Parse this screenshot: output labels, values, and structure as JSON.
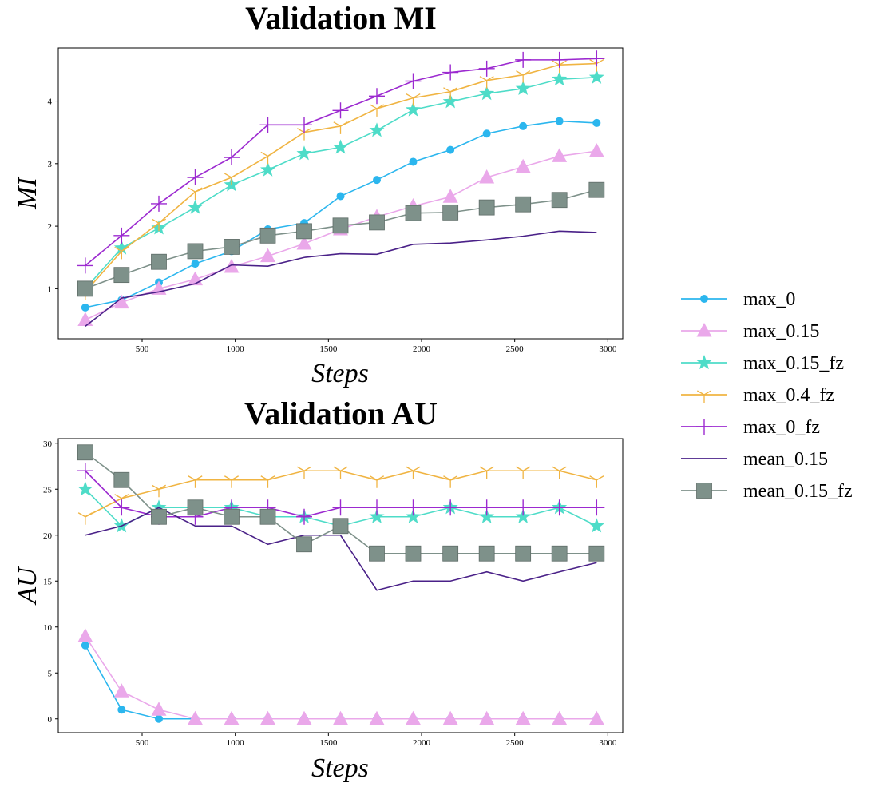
{
  "chart_data": [
    {
      "type": "line",
      "title": "Validation MI",
      "xlabel": "Steps",
      "ylabel": "MI",
      "xlim": [
        50,
        3080
      ],
      "ylim": [
        0.2,
        4.85
      ],
      "xticks": [
        500,
        1000,
        1500,
        2000,
        2500,
        3000
      ],
      "yticks": [
        1,
        2,
        3,
        4
      ],
      "x": [
        195,
        390,
        590,
        785,
        980,
        1175,
        1370,
        1565,
        1760,
        1955,
        2155,
        2350,
        2545,
        2740,
        2940
      ],
      "series": [
        {
          "name": "max_0",
          "values": [
            0.7,
            0.82,
            1.1,
            1.4,
            1.6,
            1.95,
            2.05,
            2.48,
            2.74,
            3.03,
            3.22,
            3.48,
            3.6,
            3.68,
            3.65
          ]
        },
        {
          "name": "max_0.15",
          "values": [
            0.5,
            0.78,
            1.0,
            1.15,
            1.35,
            1.52,
            1.72,
            1.95,
            2.15,
            2.32,
            2.47,
            2.78,
            2.95,
            3.12,
            3.2
          ]
        },
        {
          "name": "max_0.15_fz",
          "values": [
            1.0,
            1.65,
            1.97,
            2.3,
            2.66,
            2.9,
            3.16,
            3.26,
            3.53,
            3.86,
            3.99,
            4.12,
            4.2,
            4.35,
            4.38
          ]
        },
        {
          "name": "max_0.4_fz",
          "values": [
            0.95,
            1.6,
            2.05,
            2.55,
            2.78,
            3.12,
            3.5,
            3.6,
            3.88,
            4.05,
            4.15,
            4.33,
            4.42,
            4.58,
            4.6
          ]
        },
        {
          "name": "max_0_fz",
          "values": [
            1.37,
            1.85,
            2.36,
            2.78,
            3.1,
            3.62,
            3.62,
            3.85,
            4.08,
            4.32,
            4.46,
            4.52,
            4.66,
            4.66,
            4.68
          ]
        },
        {
          "name": "mean_0.15",
          "values": [
            0.4,
            0.85,
            0.95,
            1.08,
            1.38,
            1.36,
            1.5,
            1.56,
            1.55,
            1.71,
            1.73,
            1.78,
            1.84,
            1.92,
            1.9
          ]
        },
        {
          "name": "mean_0.15_fz",
          "values": [
            1.0,
            1.22,
            1.43,
            1.6,
            1.67,
            1.85,
            1.92,
            2.01,
            2.06,
            2.21,
            2.22,
            2.3,
            2.35,
            2.42,
            2.58
          ]
        }
      ]
    },
    {
      "type": "line",
      "title": "Validation AU",
      "xlabel": "Steps",
      "ylabel": "AU",
      "xlim": [
        50,
        3080
      ],
      "ylim": [
        -1.5,
        30.5
      ],
      "xticks": [
        500,
        1000,
        1500,
        2000,
        2500,
        3000
      ],
      "yticks": [
        0,
        5,
        10,
        15,
        20,
        25,
        30
      ],
      "x": [
        195,
        390,
        590,
        785,
        980,
        1175,
        1370,
        1565,
        1760,
        1955,
        2155,
        2350,
        2545,
        2740,
        2940
      ],
      "series": [
        {
          "name": "max_0",
          "values": [
            8,
            1,
            0,
            0,
            0,
            0,
            0,
            0,
            0,
            0,
            0,
            0,
            0,
            0,
            0
          ]
        },
        {
          "name": "max_0.15",
          "values": [
            9,
            3,
            1,
            0,
            0,
            0,
            0,
            0,
            0,
            0,
            0,
            0,
            0,
            0,
            0
          ]
        },
        {
          "name": "max_0.15_fz",
          "values": [
            25,
            21,
            23,
            23,
            23,
            22,
            22,
            21,
            22,
            22,
            23,
            22,
            22,
            23,
            21
          ]
        },
        {
          "name": "max_0.4_fz",
          "values": [
            22,
            24,
            25,
            26,
            26,
            26,
            27,
            27,
            26,
            27,
            26,
            27,
            27,
            27,
            26
          ]
        },
        {
          "name": "max_0_fz",
          "values": [
            27,
            23,
            22,
            22,
            23,
            23,
            22,
            23,
            23,
            23,
            23,
            23,
            23,
            23,
            23
          ]
        },
        {
          "name": "mean_0.15",
          "values": [
            20,
            21,
            23,
            21,
            21,
            19,
            20,
            20,
            14,
            15,
            15,
            16,
            15,
            16,
            17
          ]
        },
        {
          "name": "mean_0.15_fz",
          "values": [
            29,
            26,
            22,
            23,
            22,
            22,
            19,
            21,
            18,
            18,
            18,
            18,
            18,
            18,
            18
          ]
        }
      ]
    }
  ],
  "legend": {
    "placement": "right",
    "items": [
      "max_0",
      "max_0.15",
      "max_0.15_fz",
      "max_0.4_fz",
      "max_0_fz",
      "mean_0.15",
      "mean_0.15_fz"
    ]
  },
  "styles": {
    "max_0": {
      "color": "#2bb6ee",
      "marker": "circle"
    },
    "max_0.15": {
      "color": "#eaa8ea",
      "marker": "triangle"
    },
    "max_0.15_fz": {
      "color": "#4edcc8",
      "marker": "star"
    },
    "max_0.4_fz": {
      "color": "#f0b442",
      "marker": "tri-down"
    },
    "max_0_fz": {
      "color": "#9c2ad0",
      "marker": "plus"
    },
    "mean_0.15": {
      "color": "#4a2188",
      "marker": "none"
    },
    "mean_0.15_fz": {
      "color": "#7e918a",
      "marker": "square"
    }
  }
}
